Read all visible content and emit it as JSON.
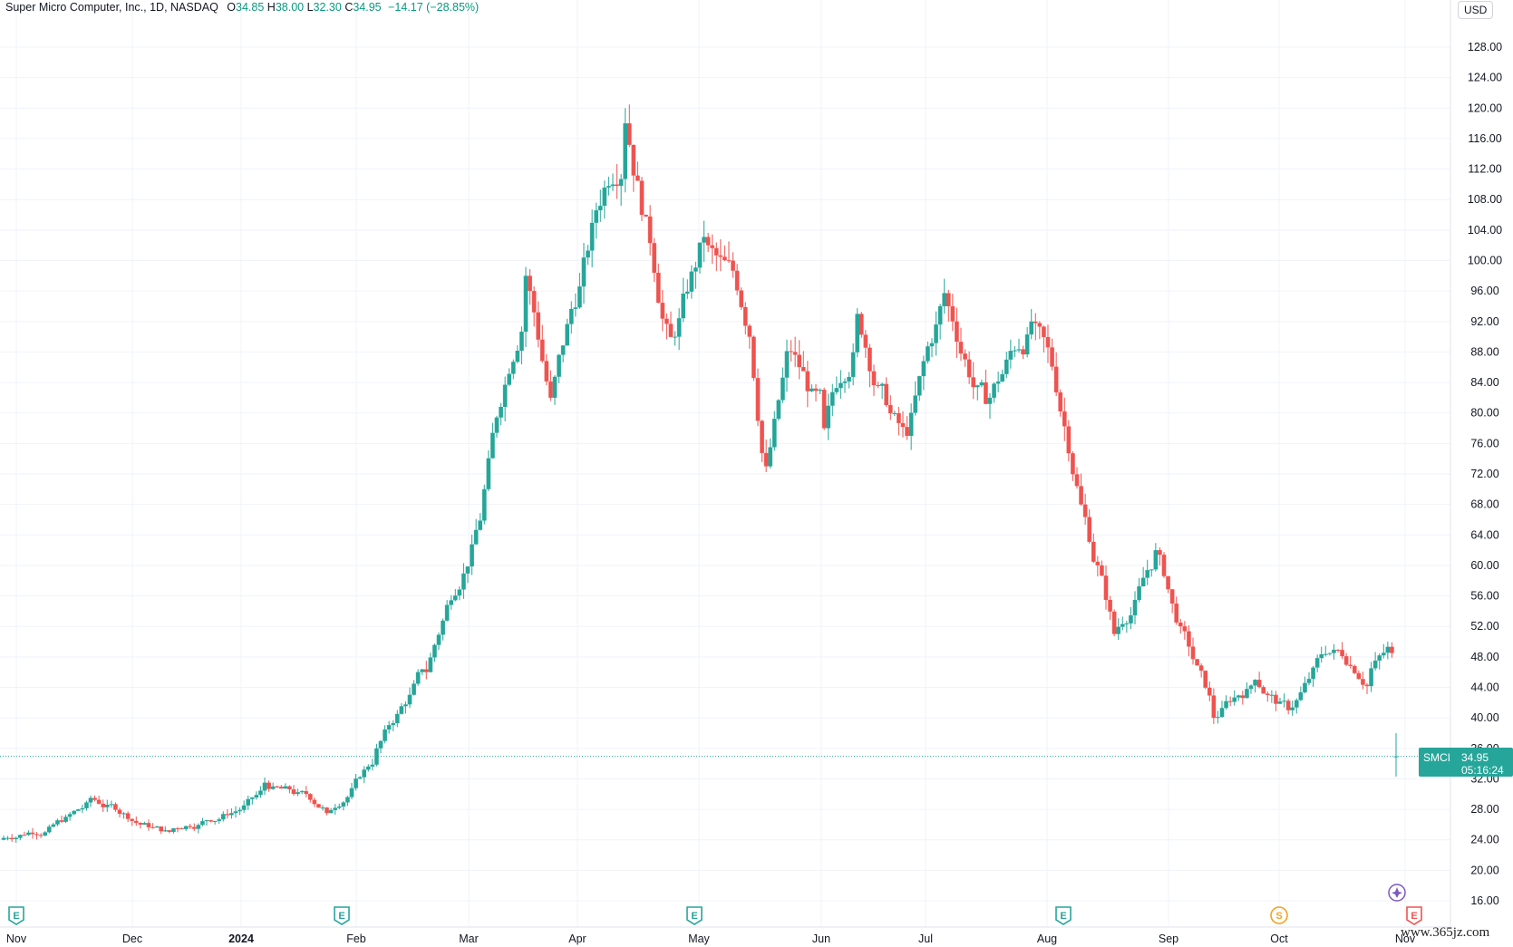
{
  "header": {
    "symbol_text": "Super Micro Computer, Inc., 1D, NASDAQ",
    "open_label": "O",
    "open": "34.85",
    "high_label": "H",
    "high": "38.00",
    "low_label": "L",
    "low": "32.30",
    "close_label": "C",
    "close": "34.95",
    "change": "−14.17 (−28.85%)"
  },
  "currency_button": "USD",
  "price_tag": {
    "symbol": "SMCI",
    "price": "34.95",
    "countdown": "05:16:24"
  },
  "watermark": "www.365jz.com",
  "colors": {
    "up": "#26a69a",
    "down": "#ef5350",
    "grid": "#f0f3fa",
    "axis_text": "#131722",
    "tag_bg": "#26a69a",
    "event_earnings": "#26a69a",
    "event_earnings_upcoming": "#ef5350",
    "event_split": "#f7a21b",
    "event_other": "#7e57c2"
  },
  "chart_data": {
    "type": "candlestick",
    "y_axis": {
      "min": 12,
      "max": 132,
      "ticks": [
        "16.00",
        "20.00",
        "24.00",
        "28.00",
        "32.00",
        "36.00",
        "40.00",
        "44.00",
        "48.00",
        "52.00",
        "56.00",
        "60.00",
        "64.00",
        "68.00",
        "72.00",
        "76.00",
        "80.00",
        "84.00",
        "88.00",
        "92.00",
        "96.00",
        "100.00",
        "104.00",
        "108.00",
        "112.00",
        "116.00",
        "120.00",
        "124.00",
        "128.00"
      ]
    },
    "x_axis": {
      "labels": [
        "Nov",
        "Dec",
        "2024",
        "Feb",
        "Mar",
        "Apr",
        "May",
        "Jun",
        "Jul",
        "Aug",
        "Sep",
        "Oct",
        "Nov"
      ]
    },
    "grid": true,
    "last_price_line": 34.95,
    "legs": [
      {
        "n": 22,
        "end": 29.5
      },
      {
        "n": 20,
        "end": 25.5
      },
      {
        "n": 22,
        "end": 31.5
      },
      {
        "n": 15,
        "end": 27.5
      },
      {
        "n": 12,
        "end": 36.0
      },
      {
        "n": 12,
        "end": 46.0
      },
      {
        "n": 14,
        "end": 70.0
      },
      {
        "n": 10,
        "end": 98.0
      },
      {
        "n": 6,
        "end": 82.0
      },
      {
        "n": 18,
        "end": 118.0
      },
      {
        "n": 12,
        "end": 90.0
      },
      {
        "n": 8,
        "end": 102.0
      },
      {
        "n": 10,
        "end": 90.0
      },
      {
        "n": 4,
        "end": 73.0
      },
      {
        "n": 6,
        "end": 88.0
      },
      {
        "n": 8,
        "end": 78.0
      },
      {
        "n": 8,
        "end": 93.0
      },
      {
        "n": 12,
        "end": 77.0
      },
      {
        "n": 10,
        "end": 94.0
      },
      {
        "n": 10,
        "end": 82.0
      },
      {
        "n": 10,
        "end": 92.0
      },
      {
        "n": 12,
        "end": 68.0
      },
      {
        "n": 4,
        "end": 60.0
      },
      {
        "n": 4,
        "end": 51.0
      },
      {
        "n": 10,
        "end": 62.0
      },
      {
        "n": 4,
        "end": 55.0
      },
      {
        "n": 10,
        "end": 40.0
      },
      {
        "n": 10,
        "end": 45.0
      },
      {
        "n": 8,
        "end": 41.0
      },
      {
        "n": 10,
        "end": 48.5
      },
      {
        "n": 10,
        "end": 46.5
      },
      {
        "n": 5,
        "end": 48.5
      }
    ],
    "last_candle": {
      "open": 34.85,
      "high": 38.0,
      "low": 32.3,
      "close": 34.95
    },
    "events": [
      {
        "type": "earnings",
        "letter": "E",
        "axis_label": "Nov"
      },
      {
        "type": "earnings",
        "letter": "E",
        "axis_label": "Feb"
      },
      {
        "type": "earnings",
        "letter": "E",
        "axis_label": "May"
      },
      {
        "type": "earnings",
        "letter": "E",
        "axis_label": "Aug"
      },
      {
        "type": "split",
        "letter": "S",
        "axis_label": "Oct"
      },
      {
        "type": "earnings-upcoming",
        "letter": "E",
        "axis_label": "Nov"
      }
    ]
  }
}
